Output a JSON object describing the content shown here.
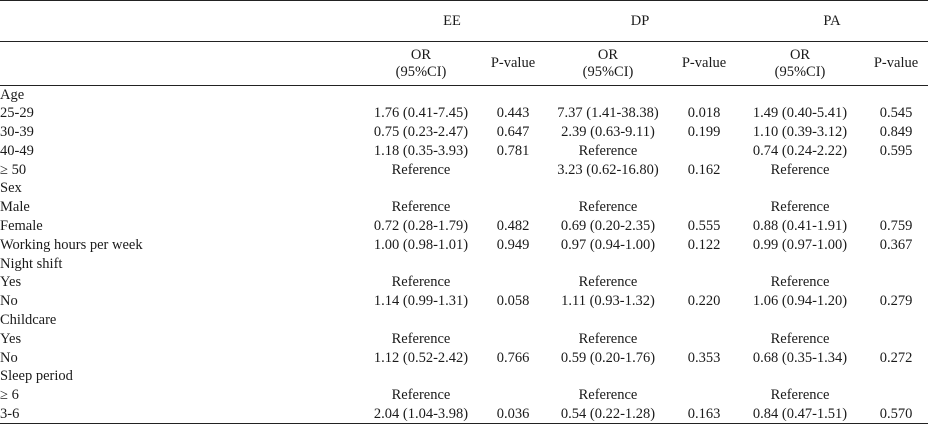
{
  "groups": [
    "EE",
    "DP",
    "PA"
  ],
  "subheaders": {
    "or_line1": "OR",
    "or_line2": "(95%CI)",
    "p_value": "P-value"
  },
  "rows": [
    {
      "label": "Age",
      "indent": 0,
      "cells": [
        "",
        "",
        "",
        "",
        "",
        ""
      ]
    },
    {
      "label": "25-29",
      "indent": 1,
      "cells": [
        "1.76 (0.41-7.45)",
        "0.443",
        "7.37 (1.41-38.38)",
        "0.018",
        "1.49 (0.40-5.41)",
        "0.545"
      ]
    },
    {
      "label": "30-39",
      "indent": 1,
      "cells": [
        "0.75 (0.23-2.47)",
        "0.647",
        "2.39 (0.63-9.11)",
        "0.199",
        "1.10 (0.39-3.12)",
        "0.849"
      ]
    },
    {
      "label": "40-49",
      "indent": 1,
      "cells": [
        "1.18 (0.35-3.93)",
        "0.781",
        "Reference",
        "",
        "0.74 (0.24-2.22)",
        "0.595"
      ]
    },
    {
      "label": "≥ 50",
      "indent": 1,
      "cells": [
        "Reference",
        "",
        "3.23 (0.62-16.80)",
        "0.162",
        "Reference",
        ""
      ]
    },
    {
      "label": "Sex",
      "indent": 0,
      "cells": [
        "",
        "",
        "",
        "",
        "",
        ""
      ]
    },
    {
      "label": "Male",
      "indent": 1,
      "cells": [
        "Reference",
        "",
        "Reference",
        "",
        "Reference",
        ""
      ]
    },
    {
      "label": "Female",
      "indent": 1,
      "cells": [
        "0.72 (0.28-1.79)",
        "0.482",
        "0.69 (0.20-2.35)",
        "0.555",
        "0.88 (0.41-1.91)",
        "0.759"
      ]
    },
    {
      "label": "Working hours per week",
      "indent": 0,
      "cells": [
        "1.00 (0.98-1.01)",
        "0.949",
        "0.97 (0.94-1.00)",
        "0.122",
        "0.99 (0.97-1.00)",
        "0.367"
      ]
    },
    {
      "label": "Night shift",
      "indent": 0,
      "cells": [
        "",
        "",
        "",
        "",
        "",
        ""
      ]
    },
    {
      "label": "Yes",
      "indent": 1,
      "cells": [
        "Reference",
        "",
        "Reference",
        "",
        "Reference",
        ""
      ]
    },
    {
      "label": "No",
      "indent": 2,
      "cells": [
        "1.14 (0.99-1.31)",
        "0.058",
        "1.11 (0.93-1.32)",
        "0.220",
        "1.06 (0.94-1.20)",
        "0.279"
      ]
    },
    {
      "label": "Childcare",
      "indent": 0,
      "cells": [
        "",
        "",
        "",
        "",
        "",
        ""
      ]
    },
    {
      "label": "Yes",
      "indent": 1,
      "cells": [
        "Reference",
        "",
        "Reference",
        "",
        "Reference",
        ""
      ]
    },
    {
      "label": "No",
      "indent": 1,
      "cells": [
        "1.12 (0.52-2.42)",
        "0.766",
        "0.59 (0.20-1.76)",
        "0.353",
        "0.68 (0.35-1.34)",
        "0.272"
      ]
    },
    {
      "label": "Sleep period",
      "indent": 0,
      "cells": [
        "",
        "",
        "",
        "",
        "",
        ""
      ]
    },
    {
      "label": "≥ 6",
      "indent": 1,
      "cells": [
        "Reference",
        "",
        "Reference",
        "",
        "Reference",
        ""
      ]
    },
    {
      "label": "3-6",
      "indent": 1,
      "cells": [
        "2.04 (1.04-3.98)",
        "0.036",
        "0.54 (0.22-1.28)",
        "0.163",
        "0.84 (0.47-1.51)",
        "0.570"
      ]
    }
  ]
}
